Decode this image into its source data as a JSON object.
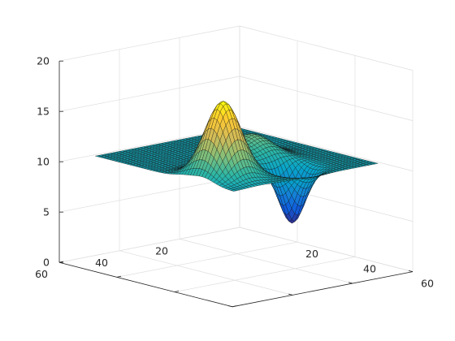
{
  "chart_data": {
    "type": "surface",
    "title": "",
    "xlabel": "",
    "ylabel": "",
    "zlabel": "",
    "xlim": [
      0,
      60
    ],
    "ylim": [
      0,
      60
    ],
    "zlim": [
      0,
      20
    ],
    "x_ticks": [
      {
        "value": 20,
        "label": "20"
      },
      {
        "value": 40,
        "label": "40"
      },
      {
        "value": 60,
        "label": "60"
      }
    ],
    "y_ticks": [
      {
        "value": 20,
        "label": "20"
      },
      {
        "value": 40,
        "label": "40"
      },
      {
        "value": 60,
        "label": "60"
      }
    ],
    "z_ticks": [
      {
        "value": 0,
        "label": "0"
      },
      {
        "value": 5,
        "label": "5"
      },
      {
        "value": 10,
        "label": "10"
      },
      {
        "value": 15,
        "label": "15"
      },
      {
        "value": 20,
        "label": "20"
      }
    ],
    "grid": true,
    "colormap": "parula",
    "colormap_stops": [
      "#352a87",
      "#0f5cdd",
      "#1481d6",
      "#06a4ca",
      "#2eb7a4",
      "#87bf77",
      "#d1bb59",
      "#fec832",
      "#f9fb0e"
    ],
    "grid_size": 49,
    "surface": {
      "base_z": 10,
      "description_free_components": [
        {
          "x": 36,
          "y": 40,
          "height": 7.5,
          "sx": 4.5,
          "sy": 4.5
        },
        {
          "x": 26,
          "y": 30,
          "height": 4.0,
          "sx": 3.0,
          "sy": 3.0
        },
        {
          "x": 24,
          "y": 19,
          "height": 2.2,
          "sx": 6.0,
          "sy": 4.5
        },
        {
          "x": 40,
          "y": 21,
          "height": -5.5,
          "sx": 3.2,
          "sy": 3.2
        },
        {
          "x": 16,
          "y": 14,
          "height": -1.8,
          "sx": 3.5,
          "sy": 3.5
        },
        {
          "x": 35,
          "y": 52,
          "height": -0.7,
          "sx": 3.0,
          "sy": 3.0
        }
      ]
    }
  }
}
